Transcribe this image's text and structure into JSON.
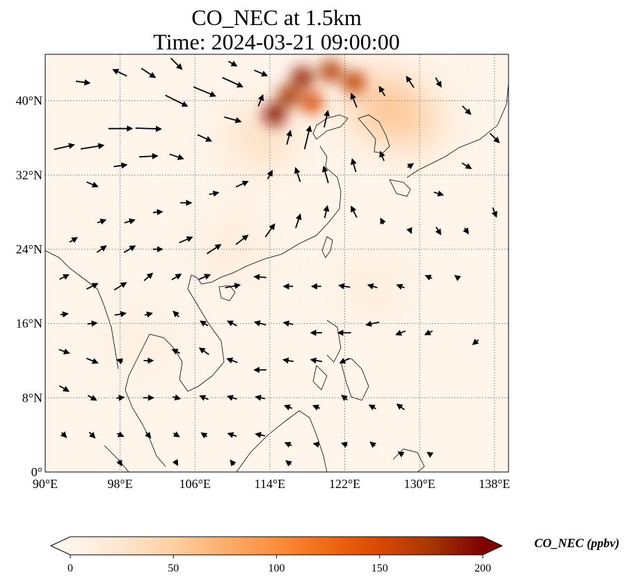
{
  "chart_data": {
    "type": "heatmap",
    "title": "CO_NEC at 1.5km",
    "subtitle": "Time: 2024-03-21 09:00:00",
    "xlim": [
      90,
      139.5
    ],
    "ylim": [
      0,
      45
    ],
    "x_ticks": [
      {
        "value": 90,
        "label": "90°E"
      },
      {
        "value": 98,
        "label": "98°E"
      },
      {
        "value": 106,
        "label": "106°E"
      },
      {
        "value": 114,
        "label": "114°E"
      },
      {
        "value": 122,
        "label": "122°E"
      },
      {
        "value": 130,
        "label": "130°E"
      },
      {
        "value": 138,
        "label": "138°E"
      }
    ],
    "y_ticks": [
      {
        "value": 0,
        "label": "0°"
      },
      {
        "value": 8,
        "label": "8°N"
      },
      {
        "value": 16,
        "label": "16°N"
      },
      {
        "value": 24,
        "label": "24°N"
      },
      {
        "value": 32,
        "label": "32°N"
      },
      {
        "value": 40,
        "label": "40°N"
      }
    ],
    "grid": true,
    "colorbar": {
      "label": "CO_NEC (ppbv)",
      "min": 0,
      "max": 200,
      "ticks": [
        0,
        50,
        100,
        150,
        200
      ],
      "colors": [
        "#fff5eb",
        "#fee6ce",
        "#fdd0a2",
        "#fdae6b",
        "#fd8d3c",
        "#f16913",
        "#d94801",
        "#a63603",
        "#7f0000"
      ],
      "extend": "both"
    },
    "concentration_hotspots": [
      {
        "lon": 117.5,
        "lat": 42.5,
        "value": 185
      },
      {
        "lon": 116.0,
        "lat": 40.5,
        "value": 175
      },
      {
        "lon": 114.5,
        "lat": 38.5,
        "value": 195
      },
      {
        "lon": 120.5,
        "lat": 43.2,
        "value": 170
      },
      {
        "lon": 123.0,
        "lat": 42.0,
        "value": 165
      },
      {
        "lon": 118.5,
        "lat": 39.8,
        "value": 150
      },
      {
        "lon": 126.0,
        "lat": 39.5,
        "value": 80
      },
      {
        "lon": 129.0,
        "lat": 38.0,
        "value": 60
      },
      {
        "lon": 113.0,
        "lat": 36.0,
        "value": 45
      },
      {
        "lon": 110.0,
        "lat": 24.0,
        "value": 22
      },
      {
        "lon": 100.0,
        "lat": 14.0,
        "value": 15
      },
      {
        "lon": 125.0,
        "lat": 20.0,
        "value": 18
      }
    ],
    "wind_vectors": [
      {
        "lon": 92,
        "lat": 35,
        "u": 2.2,
        "v": 0.5
      },
      {
        "lon": 95,
        "lat": 35,
        "u": 2.5,
        "v": 0.4
      },
      {
        "lon": 98,
        "lat": 37,
        "u": 2.6,
        "v": 0.0
      },
      {
        "lon": 101,
        "lat": 37,
        "u": 2.8,
        "v": -0.1
      },
      {
        "lon": 104,
        "lat": 40,
        "u": 2.4,
        "v": -1.2
      },
      {
        "lon": 107,
        "lat": 41,
        "u": 2.4,
        "v": -1.0
      },
      {
        "lon": 110,
        "lat": 42,
        "u": 2.2,
        "v": -1.0
      },
      {
        "lon": 113,
        "lat": 43,
        "u": 1.4,
        "v": -0.6
      },
      {
        "lon": 98,
        "lat": 43,
        "u": -1.5,
        "v": 0.7
      },
      {
        "lon": 101,
        "lat": 43,
        "u": 1.5,
        "v": -1.0
      },
      {
        "lon": 104,
        "lat": 44,
        "u": 1.2,
        "v": -1.2
      },
      {
        "lon": 110,
        "lat": 44,
        "u": 0.9,
        "v": -0.5
      },
      {
        "lon": 94,
        "lat": 42,
        "u": 1.5,
        "v": -0.2
      },
      {
        "lon": 95,
        "lat": 31,
        "u": 1.2,
        "v": -0.5
      },
      {
        "lon": 98,
        "lat": 33,
        "u": 1.4,
        "v": 0.2
      },
      {
        "lon": 101,
        "lat": 34,
        "u": 2.0,
        "v": 0.1
      },
      {
        "lon": 104,
        "lat": 34,
        "u": 1.5,
        "v": -0.5
      },
      {
        "lon": 107,
        "lat": 36,
        "u": 1.5,
        "v": -0.7
      },
      {
        "lon": 110,
        "lat": 38,
        "u": 1.8,
        "v": -0.5
      },
      {
        "lon": 113,
        "lat": 40,
        "u": 0.5,
        "v": 1.2
      },
      {
        "lon": 116,
        "lat": 36,
        "u": 0.4,
        "v": 1.5
      },
      {
        "lon": 118,
        "lat": 36,
        "u": 0.6,
        "v": 2.5
      },
      {
        "lon": 120,
        "lat": 38,
        "u": 0.4,
        "v": 1.8
      },
      {
        "lon": 123,
        "lat": 40,
        "u": -0.6,
        "v": 1.5
      },
      {
        "lon": 126,
        "lat": 41,
        "u": -0.6,
        "v": 1.0
      },
      {
        "lon": 129,
        "lat": 42,
        "u": -0.8,
        "v": 1.2
      },
      {
        "lon": 132,
        "lat": 42,
        "u": 0.6,
        "v": -1.0
      },
      {
        "lon": 135,
        "lat": 39,
        "u": 0.9,
        "v": -0.9
      },
      {
        "lon": 138,
        "lat": 36,
        "u": 1.0,
        "v": -1.0
      },
      {
        "lon": 135,
        "lat": 33,
        "u": 1.0,
        "v": -0.6
      },
      {
        "lon": 132,
        "lat": 30,
        "u": 1.0,
        "v": -0.3
      },
      {
        "lon": 129,
        "lat": 33,
        "u": 0.6,
        "v": 0.4
      },
      {
        "lon": 126,
        "lat": 34,
        "u": -0.4,
        "v": 1.0
      },
      {
        "lon": 123,
        "lat": 33,
        "u": -0.4,
        "v": 1.4
      },
      {
        "lon": 120,
        "lat": 32,
        "u": -0.5,
        "v": 1.8
      },
      {
        "lon": 117,
        "lat": 32,
        "u": -0.5,
        "v": 1.5
      },
      {
        "lon": 114,
        "lat": 32,
        "u": 0.5,
        "v": 0.9
      },
      {
        "lon": 111,
        "lat": 31,
        "u": 1.3,
        "v": 0.6
      },
      {
        "lon": 108,
        "lat": 30,
        "u": 1.0,
        "v": 0.2
      },
      {
        "lon": 105,
        "lat": 29,
        "u": 1.2,
        "v": 0.0
      },
      {
        "lon": 102,
        "lat": 28,
        "u": 1.0,
        "v": 0.1
      },
      {
        "lon": 99,
        "lat": 27,
        "u": 1.1,
        "v": 0.3
      },
      {
        "lon": 96,
        "lat": 27,
        "u": 0.9,
        "v": 0.3
      },
      {
        "lon": 93,
        "lat": 25,
        "u": 0.8,
        "v": 0.5
      },
      {
        "lon": 96,
        "lat": 24,
        "u": 1.0,
        "v": 0.7
      },
      {
        "lon": 99,
        "lat": 24,
        "u": 1.2,
        "v": 0.7
      },
      {
        "lon": 102,
        "lat": 24,
        "u": 1.0,
        "v": 0.0
      },
      {
        "lon": 105,
        "lat": 25,
        "u": 1.4,
        "v": 0.6
      },
      {
        "lon": 108,
        "lat": 24,
        "u": 1.5,
        "v": 1.0
      },
      {
        "lon": 111,
        "lat": 25,
        "u": 1.3,
        "v": 1.0
      },
      {
        "lon": 114,
        "lat": 26,
        "u": 1.0,
        "v": 1.4
      },
      {
        "lon": 117,
        "lat": 27,
        "u": 0.5,
        "v": 1.5
      },
      {
        "lon": 120,
        "lat": 28,
        "u": 0.3,
        "v": 1.3
      },
      {
        "lon": 123,
        "lat": 28,
        "u": -0.6,
        "v": 1.2
      },
      {
        "lon": 126,
        "lat": 27,
        "u": -0.3,
        "v": 0.6
      },
      {
        "lon": 129,
        "lat": 26,
        "u": 0.2,
        "v": -0.5
      },
      {
        "lon": 132,
        "lat": 26,
        "u": 0.5,
        "v": -0.8
      },
      {
        "lon": 135,
        "lat": 26,
        "u": 0.4,
        "v": -0.6
      },
      {
        "lon": 138,
        "lat": 28,
        "u": 0.4,
        "v": -1.0
      },
      {
        "lon": 92,
        "lat": 21,
        "u": 1.0,
        "v": 0.5
      },
      {
        "lon": 95,
        "lat": 20,
        "u": 1.2,
        "v": 0.6
      },
      {
        "lon": 98,
        "lat": 20,
        "u": 1.3,
        "v": 0.8
      },
      {
        "lon": 101,
        "lat": 21,
        "u": 0.9,
        "v": 0.8
      },
      {
        "lon": 104,
        "lat": 21,
        "u": 1.0,
        "v": 0.6
      },
      {
        "lon": 107,
        "lat": 21,
        "u": 1.2,
        "v": 0.5
      },
      {
        "lon": 110,
        "lat": 20,
        "u": 1.6,
        "v": 0.3
      },
      {
        "lon": 113,
        "lat": 21,
        "u": -1.3,
        "v": 0.1
      },
      {
        "lon": 116,
        "lat": 20,
        "u": -1.0,
        "v": 0.0
      },
      {
        "lon": 119,
        "lat": 20,
        "u": -1.0,
        "v": 0.0
      },
      {
        "lon": 122,
        "lat": 20,
        "u": -1.2,
        "v": 0.2
      },
      {
        "lon": 125,
        "lat": 20,
        "u": -1.0,
        "v": 0.3
      },
      {
        "lon": 128,
        "lat": 20,
        "u": -0.8,
        "v": 0.3
      },
      {
        "lon": 131,
        "lat": 21,
        "u": -0.7,
        "v": 0.3
      },
      {
        "lon": 134,
        "lat": 21,
        "u": -0.4,
        "v": 0.3
      },
      {
        "lon": 92,
        "lat": 17,
        "u": 0.8,
        "v": 0.1
      },
      {
        "lon": 95,
        "lat": 16,
        "u": 1.0,
        "v": 0.1
      },
      {
        "lon": 98,
        "lat": 17,
        "u": 1.2,
        "v": 0.2
      },
      {
        "lon": 101,
        "lat": 17,
        "u": 0.8,
        "v": 0.2
      },
      {
        "lon": 104,
        "lat": 17,
        "u": -0.6,
        "v": 0.6
      },
      {
        "lon": 107,
        "lat": 16,
        "u": -0.8,
        "v": 0.5
      },
      {
        "lon": 110,
        "lat": 16,
        "u": -1.0,
        "v": 0.5
      },
      {
        "lon": 113,
        "lat": 16,
        "u": -1.2,
        "v": 0.3
      },
      {
        "lon": 116,
        "lat": 16,
        "u": -1.0,
        "v": 0.2
      },
      {
        "lon": 119,
        "lat": 15,
        "u": -1.2,
        "v": 0.0
      },
      {
        "lon": 122,
        "lat": 15,
        "u": -1.4,
        "v": 0.0
      },
      {
        "lon": 125,
        "lat": 16,
        "u": -1.4,
        "v": -0.3
      },
      {
        "lon": 128,
        "lat": 15,
        "u": -1.0,
        "v": -0.4
      },
      {
        "lon": 131,
        "lat": 15,
        "u": -0.8,
        "v": -0.4
      },
      {
        "lon": 136,
        "lat": 14,
        "u": -0.6,
        "v": -0.5
      },
      {
        "lon": 92,
        "lat": 13,
        "u": 1.1,
        "v": -0.4
      },
      {
        "lon": 95,
        "lat": 12,
        "u": 1.2,
        "v": -0.5
      },
      {
        "lon": 98,
        "lat": 12,
        "u": -0.6,
        "v": 0.2
      },
      {
        "lon": 101,
        "lat": 12,
        "u": 1.0,
        "v": 0.0
      },
      {
        "lon": 104,
        "lat": 13,
        "u": -0.8,
        "v": 0.4
      },
      {
        "lon": 107,
        "lat": 13,
        "u": -1.0,
        "v": 0.7
      },
      {
        "lon": 110,
        "lat": 12,
        "u": -1.1,
        "v": 0.4
      },
      {
        "lon": 113,
        "lat": 11,
        "u": -1.3,
        "v": 0.0
      },
      {
        "lon": 116,
        "lat": 12,
        "u": -1.1,
        "v": 0.2
      },
      {
        "lon": 119,
        "lat": 12,
        "u": -1.2,
        "v": 0.2
      },
      {
        "lon": 122,
        "lat": 12,
        "u": -1.0,
        "v": -0.5
      },
      {
        "lon": 92,
        "lat": 9,
        "u": 1.0,
        "v": -0.6
      },
      {
        "lon": 95,
        "lat": 8,
        "u": 0.9,
        "v": -0.5
      },
      {
        "lon": 98,
        "lat": 8,
        "u": 0.8,
        "v": 0.1
      },
      {
        "lon": 101,
        "lat": 8,
        "u": 1.1,
        "v": 0.0
      },
      {
        "lon": 104,
        "lat": 8,
        "u": 0.8,
        "v": -0.2
      },
      {
        "lon": 107,
        "lat": 8,
        "u": -0.9,
        "v": 0.4
      },
      {
        "lon": 110,
        "lat": 8,
        "u": -1.0,
        "v": 0.3
      },
      {
        "lon": 113,
        "lat": 8,
        "u": -1.0,
        "v": 0.2
      },
      {
        "lon": 116,
        "lat": 7,
        "u": -0.8,
        "v": 0.3
      },
      {
        "lon": 119,
        "lat": 7,
        "u": -0.7,
        "v": 0.3
      },
      {
        "lon": 122,
        "lat": 8,
        "u": -0.6,
        "v": 0.5
      },
      {
        "lon": 125,
        "lat": 7,
        "u": -0.7,
        "v": 0.4
      },
      {
        "lon": 128,
        "lat": 7,
        "u": -0.8,
        "v": 0.6
      },
      {
        "lon": 92,
        "lat": 4,
        "u": 0.5,
        "v": -0.5
      },
      {
        "lon": 95,
        "lat": 4,
        "u": 0.6,
        "v": -0.6
      },
      {
        "lon": 98,
        "lat": 4,
        "u": 0.7,
        "v": -0.3
      },
      {
        "lon": 101,
        "lat": 4,
        "u": 0.5,
        "v": -0.6
      },
      {
        "lon": 104,
        "lat": 4,
        "u": 0.6,
        "v": -0.4
      },
      {
        "lon": 107,
        "lat": 4,
        "u": -0.6,
        "v": 0.4
      },
      {
        "lon": 110,
        "lat": 4,
        "u": -0.9,
        "v": 0.3
      },
      {
        "lon": 113,
        "lat": 4,
        "u": -1.0,
        "v": 0.2
      },
      {
        "lon": 116,
        "lat": 3,
        "u": -0.7,
        "v": 0.3
      },
      {
        "lon": 119,
        "lat": 3,
        "u": -0.6,
        "v": 0.1
      },
      {
        "lon": 122,
        "lat": 3,
        "u": -0.6,
        "v": 0.2
      },
      {
        "lon": 125,
        "lat": 3,
        "u": -0.5,
        "v": 0.4
      },
      {
        "lon": 128,
        "lat": 2,
        "u": -0.5,
        "v": 0.3
      },
      {
        "lon": 131,
        "lat": 2,
        "u": -0.3,
        "v": 0.2
      },
      {
        "lon": 98,
        "lat": 1,
        "u": 0.3,
        "v": -0.6
      },
      {
        "lon": 104,
        "lat": 1,
        "u": 0.3,
        "v": -0.5
      },
      {
        "lon": 110,
        "lat": 1,
        "u": -0.4,
        "v": 0.5
      },
      {
        "lon": 116,
        "lat": 1,
        "u": -0.5,
        "v": 0.4
      }
    ]
  }
}
